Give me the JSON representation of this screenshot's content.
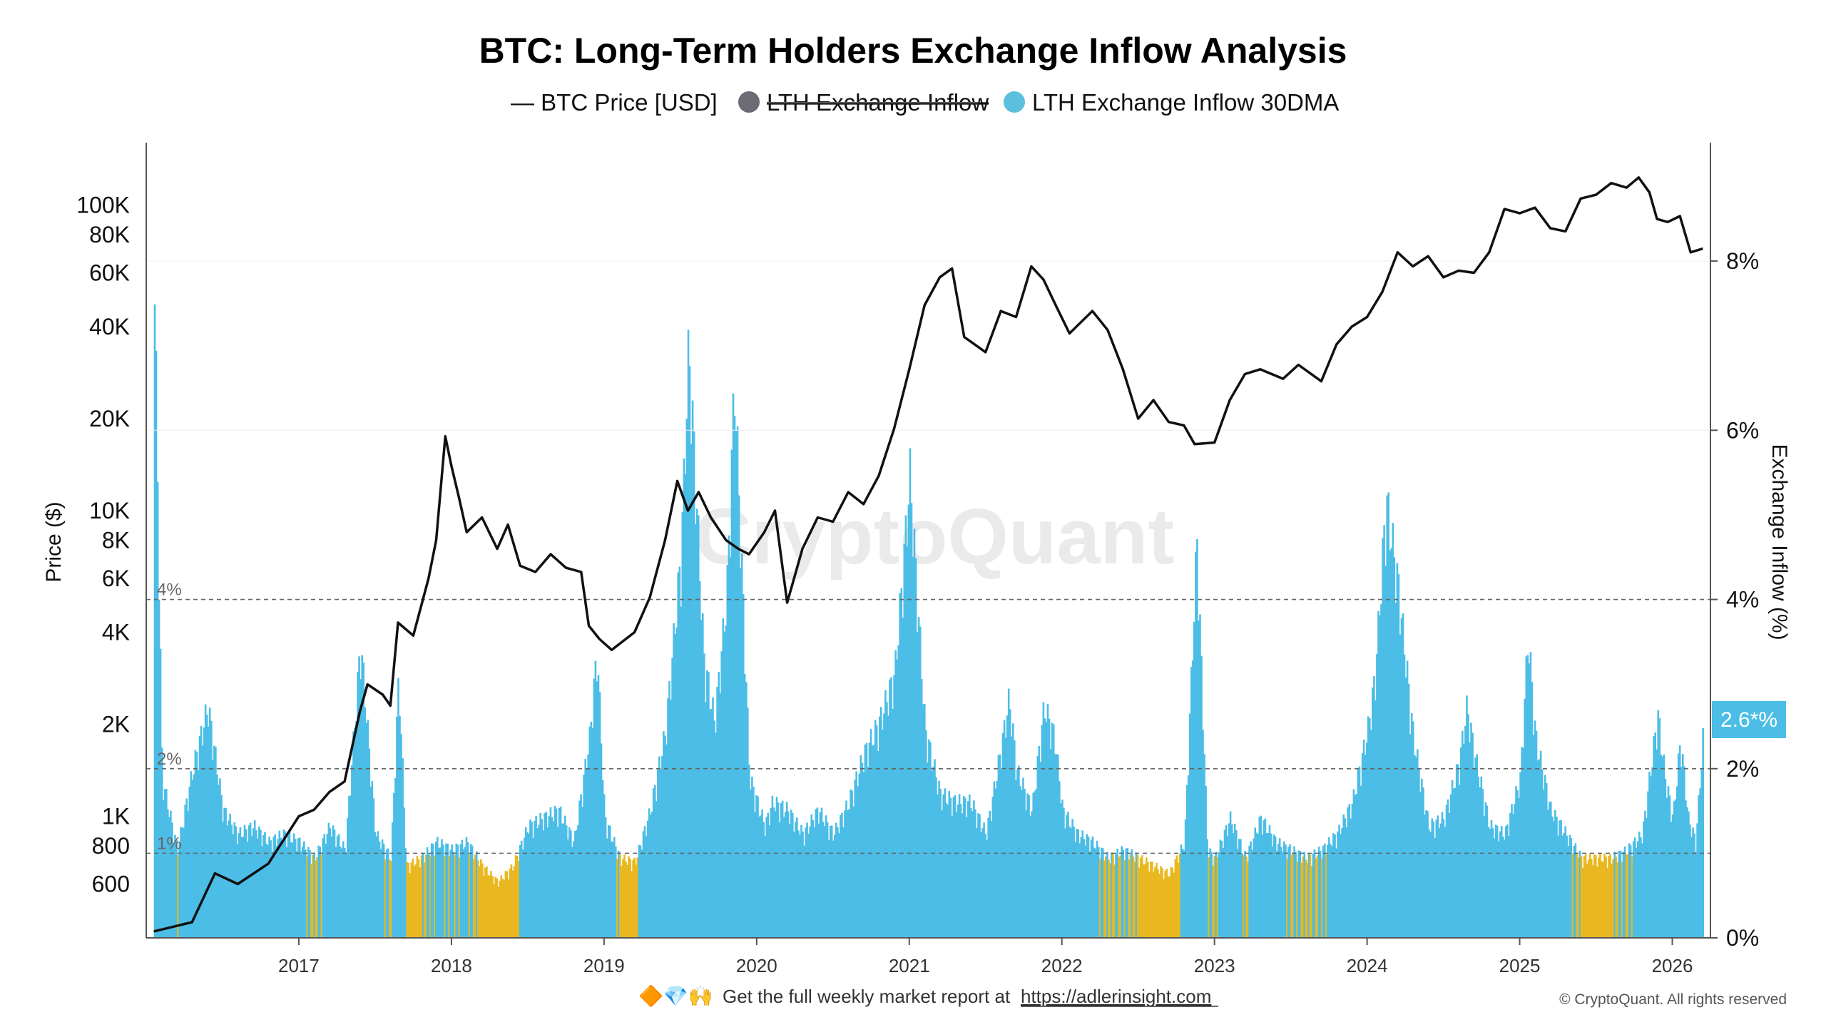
{
  "chart_data": {
    "type": "bar",
    "title": "BTC: Long-Term Holders Exchange Inflow Analysis",
    "watermark": "CryptoQuant",
    "legend": [
      {
        "label": "— BTC Price [USD]",
        "color": "#111111",
        "marker": "line",
        "disabled": false
      },
      {
        "label": "LTH Exchange Inflow",
        "color": "#6b6b74",
        "marker": "dot",
        "disabled": true
      },
      {
        "label": "LTH Exchange Inflow 30DMA",
        "color": "#5bc0de",
        "marker": "dot",
        "disabled": false
      }
    ],
    "left_axis": {
      "label": "Price ($)",
      "scale": "log",
      "range": [
        400,
        160000
      ],
      "ticks": [
        "100K",
        "80K",
        "60K",
        "40K",
        "20K",
        "10K",
        "8K",
        "6K",
        "4K",
        "2K",
        "1K",
        "800",
        "600"
      ],
      "tick_values": [
        100000,
        80000,
        60000,
        40000,
        20000,
        10000,
        8000,
        6000,
        4000,
        2000,
        1000,
        800,
        600
      ]
    },
    "right_axis": {
      "label": "Exchange Inflow (%)",
      "range": [
        0,
        9.4
      ],
      "ticks": [
        "0%",
        "2%",
        "4%",
        "6%",
        "8%"
      ],
      "tick_values": [
        0,
        2,
        4,
        6,
        8
      ]
    },
    "x_axis": {
      "range": [
        2016.0,
        2026.25
      ],
      "ticks": [
        "2017",
        "2018",
        "2019",
        "2020",
        "2021",
        "2022",
        "2023",
        "2024",
        "2025",
        "2026"
      ],
      "tick_values": [
        2017,
        2018,
        2019,
        2020,
        2021,
        2022,
        2023,
        2024,
        2025,
        2026
      ]
    },
    "reference_lines": [
      {
        "value": 4,
        "label": "4%"
      },
      {
        "value": 2,
        "label": "2%"
      },
      {
        "value": 1,
        "label": "1%"
      }
    ],
    "current_value_badge": "2.6*%",
    "colors": {
      "above_threshold": "#4bbde6",
      "below_threshold": "#e9b820",
      "price_line": "#111111"
    },
    "series": [
      {
        "name": "BTC Price [USD]",
        "axis": "left",
        "points": [
          [
            2016.05,
            420
          ],
          [
            2016.3,
            450
          ],
          [
            2016.45,
            650
          ],
          [
            2016.6,
            600
          ],
          [
            2016.8,
            700
          ],
          [
            2017.0,
            1000
          ],
          [
            2017.1,
            1050
          ],
          [
            2017.2,
            1200
          ],
          [
            2017.3,
            1300
          ],
          [
            2017.4,
            2200
          ],
          [
            2017.45,
            2700
          ],
          [
            2017.55,
            2500
          ],
          [
            2017.6,
            2300
          ],
          [
            2017.65,
            4300
          ],
          [
            2017.75,
            3900
          ],
          [
            2017.85,
            6000
          ],
          [
            2017.9,
            8000
          ],
          [
            2017.96,
            17500
          ],
          [
            2018.0,
            14000
          ],
          [
            2018.05,
            11000
          ],
          [
            2018.1,
            8500
          ],
          [
            2018.2,
            9500
          ],
          [
            2018.3,
            7500
          ],
          [
            2018.37,
            9000
          ],
          [
            2018.45,
            6600
          ],
          [
            2018.55,
            6300
          ],
          [
            2018.65,
            7200
          ],
          [
            2018.75,
            6500
          ],
          [
            2018.85,
            6300
          ],
          [
            2018.9,
            4200
          ],
          [
            2018.97,
            3800
          ],
          [
            2019.05,
            3500
          ],
          [
            2019.2,
            4000
          ],
          [
            2019.3,
            5200
          ],
          [
            2019.4,
            8000
          ],
          [
            2019.48,
            12500
          ],
          [
            2019.55,
            10000
          ],
          [
            2019.62,
            11500
          ],
          [
            2019.7,
            9500
          ],
          [
            2019.8,
            8000
          ],
          [
            2019.88,
            7500
          ],
          [
            2019.95,
            7200
          ],
          [
            2020.05,
            8500
          ],
          [
            2020.12,
            10000
          ],
          [
            2020.2,
            5000
          ],
          [
            2020.3,
            7500
          ],
          [
            2020.4,
            9500
          ],
          [
            2020.5,
            9200
          ],
          [
            2020.6,
            11500
          ],
          [
            2020.7,
            10500
          ],
          [
            2020.8,
            13000
          ],
          [
            2020.9,
            18500
          ],
          [
            2021.0,
            29000
          ],
          [
            2021.1,
            47000
          ],
          [
            2021.2,
            58000
          ],
          [
            2021.28,
            62000
          ],
          [
            2021.36,
            37000
          ],
          [
            2021.5,
            33000
          ],
          [
            2021.6,
            45000
          ],
          [
            2021.7,
            43000
          ],
          [
            2021.8,
            63000
          ],
          [
            2021.88,
            57000
          ],
          [
            2021.96,
            47000
          ],
          [
            2022.05,
            38000
          ],
          [
            2022.2,
            45000
          ],
          [
            2022.3,
            39000
          ],
          [
            2022.4,
            29000
          ],
          [
            2022.5,
            20000
          ],
          [
            2022.6,
            23000
          ],
          [
            2022.7,
            19500
          ],
          [
            2022.8,
            19000
          ],
          [
            2022.87,
            16500
          ],
          [
            2023.0,
            16700
          ],
          [
            2023.1,
            23000
          ],
          [
            2023.2,
            28000
          ],
          [
            2023.3,
            29000
          ],
          [
            2023.45,
            27000
          ],
          [
            2023.55,
            30000
          ],
          [
            2023.7,
            26500
          ],
          [
            2023.8,
            35000
          ],
          [
            2023.9,
            40000
          ],
          [
            2024.0,
            43000
          ],
          [
            2024.1,
            52000
          ],
          [
            2024.2,
            70000
          ],
          [
            2024.3,
            63000
          ],
          [
            2024.4,
            68000
          ],
          [
            2024.5,
            58000
          ],
          [
            2024.6,
            61000
          ],
          [
            2024.7,
            60000
          ],
          [
            2024.8,
            70000
          ],
          [
            2024.9,
            97000
          ],
          [
            2025.0,
            94000
          ],
          [
            2025.1,
            98000
          ],
          [
            2025.2,
            84000
          ],
          [
            2025.3,
            82000
          ],
          [
            2025.4,
            105000
          ],
          [
            2025.5,
            108000
          ],
          [
            2025.6,
            118000
          ],
          [
            2025.7,
            114000
          ],
          [
            2025.78,
            123000
          ],
          [
            2025.85,
            110000
          ],
          [
            2025.9,
            90000
          ],
          [
            2025.97,
            88000
          ],
          [
            2026.05,
            92000
          ],
          [
            2026.12,
            70000
          ],
          [
            2026.2,
            72000
          ]
        ]
      },
      {
        "name": "LTH Exchange Inflow 30DMA",
        "axis": "right",
        "points": [
          [
            2016.05,
            8.1
          ],
          [
            2016.1,
            2.0
          ],
          [
            2016.2,
            1.1
          ],
          [
            2016.3,
            2.1
          ],
          [
            2016.4,
            2.9
          ],
          [
            2016.5,
            1.6
          ],
          [
            2016.6,
            1.3
          ],
          [
            2016.7,
            1.4
          ],
          [
            2016.8,
            1.2
          ],
          [
            2016.9,
            1.3
          ],
          [
            2017.0,
            1.2
          ],
          [
            2017.1,
            1.0
          ],
          [
            2017.2,
            1.4
          ],
          [
            2017.3,
            1.1
          ],
          [
            2017.4,
            3.7
          ],
          [
            2017.5,
            1.3
          ],
          [
            2017.6,
            1.0
          ],
          [
            2017.65,
            3.3
          ],
          [
            2017.7,
            0.9
          ],
          [
            2017.8,
            1.0
          ],
          [
            2017.9,
            1.2
          ],
          [
            2018.0,
            1.1
          ],
          [
            2018.1,
            1.2
          ],
          [
            2018.2,
            0.9
          ],
          [
            2018.3,
            0.7
          ],
          [
            2018.4,
            0.9
          ],
          [
            2018.5,
            1.4
          ],
          [
            2018.6,
            1.5
          ],
          [
            2018.7,
            1.6
          ],
          [
            2018.8,
            1.2
          ],
          [
            2018.9,
            2.5
          ],
          [
            2018.95,
            3.6
          ],
          [
            2019.0,
            1.5
          ],
          [
            2019.1,
            1.0
          ],
          [
            2019.2,
            0.95
          ],
          [
            2019.3,
            1.6
          ],
          [
            2019.4,
            2.6
          ],
          [
            2019.5,
            4.8
          ],
          [
            2019.55,
            7.4
          ],
          [
            2019.6,
            5.5
          ],
          [
            2019.65,
            3.5
          ],
          [
            2019.72,
            2.7
          ],
          [
            2019.8,
            4.3
          ],
          [
            2019.85,
            7.0
          ],
          [
            2019.9,
            4.5
          ],
          [
            2019.95,
            2.0
          ],
          [
            2020.05,
            1.4
          ],
          [
            2020.1,
            1.7
          ],
          [
            2020.2,
            1.6
          ],
          [
            2020.3,
            1.3
          ],
          [
            2020.4,
            1.6
          ],
          [
            2020.5,
            1.3
          ],
          [
            2020.6,
            1.7
          ],
          [
            2020.7,
            2.3
          ],
          [
            2020.8,
            2.7
          ],
          [
            2020.9,
            3.3
          ],
          [
            2020.95,
            4.5
          ],
          [
            2021.0,
            5.8
          ],
          [
            2021.05,
            4.2
          ],
          [
            2021.1,
            2.6
          ],
          [
            2021.2,
            1.8
          ],
          [
            2021.3,
            1.7
          ],
          [
            2021.4,
            1.7
          ],
          [
            2021.5,
            1.3
          ],
          [
            2021.6,
            2.4
          ],
          [
            2021.65,
            3.0
          ],
          [
            2021.7,
            2.1
          ],
          [
            2021.8,
            1.6
          ],
          [
            2021.88,
            2.9
          ],
          [
            2021.95,
            2.5
          ],
          [
            2022.0,
            1.6
          ],
          [
            2022.1,
            1.3
          ],
          [
            2022.2,
            1.2
          ],
          [
            2022.3,
            1.0
          ],
          [
            2022.4,
            1.1
          ],
          [
            2022.5,
            1.0
          ],
          [
            2022.6,
            0.9
          ],
          [
            2022.7,
            0.8
          ],
          [
            2022.75,
            1.0
          ],
          [
            2022.8,
            1.2
          ],
          [
            2022.88,
            5.0
          ],
          [
            2022.95,
            1.1
          ],
          [
            2023.0,
            1.0
          ],
          [
            2023.1,
            1.5
          ],
          [
            2023.2,
            1.0
          ],
          [
            2023.3,
            1.5
          ],
          [
            2023.4,
            1.2
          ],
          [
            2023.5,
            1.1
          ],
          [
            2023.6,
            1.0
          ],
          [
            2023.7,
            1.1
          ],
          [
            2023.8,
            1.3
          ],
          [
            2023.9,
            1.7
          ],
          [
            2024.0,
            2.6
          ],
          [
            2024.05,
            3.3
          ],
          [
            2024.12,
            5.5
          ],
          [
            2024.2,
            4.4
          ],
          [
            2024.3,
            2.5
          ],
          [
            2024.4,
            1.4
          ],
          [
            2024.5,
            1.5
          ],
          [
            2024.6,
            2.2
          ],
          [
            2024.65,
            2.9
          ],
          [
            2024.7,
            2.3
          ],
          [
            2024.8,
            1.4
          ],
          [
            2024.9,
            1.3
          ],
          [
            2025.0,
            2.0
          ],
          [
            2025.05,
            3.8
          ],
          [
            2025.1,
            2.5
          ],
          [
            2025.2,
            1.6
          ],
          [
            2025.3,
            1.3
          ],
          [
            2025.4,
            1.0
          ],
          [
            2025.5,
            1.0
          ],
          [
            2025.6,
            1.0
          ],
          [
            2025.7,
            1.1
          ],
          [
            2025.8,
            1.3
          ],
          [
            2025.9,
            2.8
          ],
          [
            2025.95,
            2.0
          ],
          [
            2026.0,
            1.5
          ],
          [
            2026.05,
            2.5
          ],
          [
            2026.1,
            1.5
          ],
          [
            2026.15,
            1.2
          ],
          [
            2026.2,
            2.6
          ]
        ]
      }
    ]
  },
  "footer": {
    "text": "Get the full weekly market report at ",
    "link": "https://adlerinsight.com",
    "emoji": "🔶💎🙌"
  },
  "copyright": "© CryptoQuant. All rights reserved"
}
